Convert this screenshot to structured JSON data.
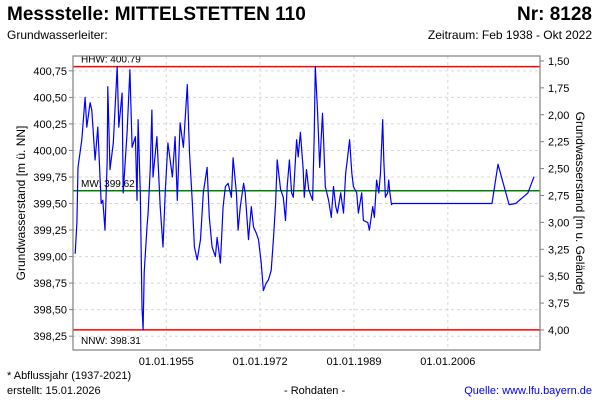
{
  "header": {
    "title": "Messstelle: MITTELSTETTEN 110",
    "number": "Nr: 8128",
    "aquifer": "Grundwasserleiter:",
    "period": "Zeitraum: Feb 1938 - Okt 2022"
  },
  "footer": {
    "footnote": "* Abflussjahr (1937-2021)",
    "created": "erstellt:  15.01.2026",
    "rawdata": "- Rohdaten -",
    "source": "Quelle: www.lfu.bayern.de"
  },
  "chart_data": {
    "type": "line",
    "title": "Messstelle: MITTELSTETTEN 110",
    "ylabel": "Grundwasserstand [m ü. NN]",
    "ylabel_right": "Grundwasserstand [m u. Gelände]",
    "xlim": [
      1938.1,
      2022.7
    ],
    "ylim": [
      398.12,
      400.89
    ],
    "ylim_right": [
      1.454,
      4.186
    ],
    "grid": true,
    "x_ticks": [
      {
        "value": 1955,
        "label": "01.01.1955"
      },
      {
        "value": 1972,
        "label": "01.01.1972"
      },
      {
        "value": 1989,
        "label": "01.01.1989"
      },
      {
        "value": 2006,
        "label": "01.01.2006"
      }
    ],
    "y_ticks": [
      {
        "value": 398.25,
        "label": "398,25"
      },
      {
        "value": 398.5,
        "label": "398,50"
      },
      {
        "value": 398.75,
        "label": "398,75"
      },
      {
        "value": 399.0,
        "label": "399,00"
      },
      {
        "value": 399.25,
        "label": "399,25"
      },
      {
        "value": 399.5,
        "label": "399,50"
      },
      {
        "value": 399.75,
        "label": "399,75"
      },
      {
        "value": 400.0,
        "label": "400,00"
      },
      {
        "value": 400.25,
        "label": "400,25"
      },
      {
        "value": 400.5,
        "label": "400,50"
      },
      {
        "value": 400.75,
        "label": "400,75"
      }
    ],
    "y_ticks_right": [
      {
        "value": 1.5,
        "label": "1,50"
      },
      {
        "value": 1.75,
        "label": "1,75"
      },
      {
        "value": 2.0,
        "label": "2,00"
      },
      {
        "value": 2.25,
        "label": "2,25"
      },
      {
        "value": 2.5,
        "label": "2,50"
      },
      {
        "value": 2.75,
        "label": "2,75"
      },
      {
        "value": 3.0,
        "label": "3,00"
      },
      {
        "value": 3.25,
        "label": "3,25"
      },
      {
        "value": 3.5,
        "label": "3,50"
      },
      {
        "value": 3.75,
        "label": "3,75"
      },
      {
        "value": 4.0,
        "label": "4,00"
      }
    ],
    "reference_lines": [
      {
        "name": "HHW",
        "value": 400.79,
        "label": "HHW: 400.79",
        "color": "#ff0000"
      },
      {
        "name": "MW",
        "value": 399.62,
        "label": "MW: 399.62",
        "color": "#008000"
      },
      {
        "name": "NNW",
        "value": 398.31,
        "label": "NNW: 398.31",
        "color": "#ff0000"
      }
    ],
    "series": [
      {
        "name": "Grundwasserstand",
        "color": "#0000ff",
        "points": [
          [
            1938.5,
            399.03
          ],
          [
            1938.8,
            399.32
          ],
          [
            1939.0,
            399.84
          ],
          [
            1939.7,
            400.1
          ],
          [
            1940.3,
            400.5
          ],
          [
            1940.6,
            400.22
          ],
          [
            1941.2,
            400.45
          ],
          [
            1941.5,
            400.38
          ],
          [
            1942.1,
            399.91
          ],
          [
            1942.6,
            400.22
          ],
          [
            1943.2,
            399.5
          ],
          [
            1943.5,
            399.53
          ],
          [
            1943.9,
            399.25
          ],
          [
            1944.3,
            399.91
          ],
          [
            1944.4,
            400.6
          ],
          [
            1944.8,
            399.82
          ],
          [
            1945.4,
            400.07
          ],
          [
            1946.1,
            400.79
          ],
          [
            1946.4,
            400.22
          ],
          [
            1947.0,
            400.54
          ],
          [
            1947.2,
            399.6
          ],
          [
            1947.9,
            400.17
          ],
          [
            1948.4,
            400.76
          ],
          [
            1948.8,
            400.03
          ],
          [
            1949.4,
            400.13
          ],
          [
            1949.7,
            399.53
          ],
          [
            1949.9,
            400.29
          ],
          [
            1950.3,
            399.6
          ],
          [
            1950.6,
            398.52
          ],
          [
            1950.8,
            398.31
          ],
          [
            1951.0,
            398.85
          ],
          [
            1951.5,
            399.28
          ],
          [
            1951.7,
            399.41
          ],
          [
            1952.1,
            399.84
          ],
          [
            1952.4,
            400.38
          ],
          [
            1952.6,
            399.75
          ],
          [
            1953.3,
            400.13
          ],
          [
            1953.9,
            399.47
          ],
          [
            1954.4,
            399.09
          ],
          [
            1954.8,
            399.6
          ],
          [
            1955.3,
            400.07
          ],
          [
            1956.1,
            399.75
          ],
          [
            1956.6,
            400.13
          ],
          [
            1957.0,
            399.53
          ],
          [
            1957.5,
            400.26
          ],
          [
            1958.1,
            400.03
          ],
          [
            1958.8,
            400.62
          ],
          [
            1959.2,
            399.98
          ],
          [
            1959.7,
            399.53
          ],
          [
            1960.1,
            399.09
          ],
          [
            1960.6,
            398.97
          ],
          [
            1961.2,
            399.16
          ],
          [
            1961.7,
            399.6
          ],
          [
            1962.4,
            399.84
          ],
          [
            1962.8,
            399.37
          ],
          [
            1963.3,
            399.09
          ],
          [
            1963.9,
            399.0
          ],
          [
            1964.2,
            399.18
          ],
          [
            1964.8,
            398.94
          ],
          [
            1965.3,
            399.47
          ],
          [
            1965.7,
            399.66
          ],
          [
            1966.2,
            399.69
          ],
          [
            1966.8,
            399.56
          ],
          [
            1967.1,
            399.93
          ],
          [
            1967.7,
            399.6
          ],
          [
            1968.0,
            399.25
          ],
          [
            1968.4,
            399.47
          ],
          [
            1969.0,
            399.69
          ],
          [
            1969.3,
            399.6
          ],
          [
            1969.9,
            399.16
          ],
          [
            1970.4,
            399.47
          ],
          [
            1970.8,
            399.28
          ],
          [
            1971.3,
            399.22
          ],
          [
            1971.7,
            399.16
          ],
          [
            1972.2,
            398.94
          ],
          [
            1972.6,
            398.68
          ],
          [
            1973.1,
            398.75
          ],
          [
            1973.5,
            398.78
          ],
          [
            1974.0,
            398.87
          ],
          [
            1974.4,
            399.16
          ],
          [
            1974.8,
            399.5
          ],
          [
            1975.1,
            399.91
          ],
          [
            1975.7,
            399.63
          ],
          [
            1976.2,
            399.56
          ],
          [
            1976.6,
            399.34
          ],
          [
            1976.9,
            399.66
          ],
          [
            1977.3,
            399.91
          ],
          [
            1977.7,
            399.6
          ],
          [
            1978.0,
            399.56
          ],
          [
            1978.6,
            400.1
          ],
          [
            1978.9,
            399.94
          ],
          [
            1979.3,
            400.17
          ],
          [
            1979.8,
            399.82
          ],
          [
            1980.0,
            399.56
          ],
          [
            1980.4,
            399.82
          ],
          [
            1980.8,
            399.63
          ],
          [
            1981.5,
            399.53
          ],
          [
            1981.8,
            400.13
          ],
          [
            1982.0,
            400.79
          ],
          [
            1982.4,
            400.38
          ],
          [
            1982.8,
            399.84
          ],
          [
            1983.3,
            400.35
          ],
          [
            1983.5,
            400.1
          ],
          [
            1983.8,
            399.66
          ],
          [
            1984.4,
            399.53
          ],
          [
            1984.9,
            399.37
          ],
          [
            1985.3,
            399.66
          ],
          [
            1985.7,
            399.47
          ],
          [
            1986.0,
            399.41
          ],
          [
            1986.6,
            399.6
          ],
          [
            1987.1,
            399.41
          ],
          [
            1987.5,
            399.79
          ],
          [
            1987.8,
            399.91
          ],
          [
            1988.2,
            400.1
          ],
          [
            1988.6,
            399.79
          ],
          [
            1988.9,
            399.66
          ],
          [
            1989.5,
            399.6
          ],
          [
            1989.8,
            399.41
          ],
          [
            1990.4,
            399.6
          ],
          [
            1990.7,
            399.34
          ],
          [
            1991.5,
            399.32
          ],
          [
            1991.8,
            399.25
          ],
          [
            1992.4,
            399.47
          ],
          [
            1992.7,
            399.37
          ],
          [
            1993.1,
            399.72
          ],
          [
            1993.5,
            399.6
          ],
          [
            1993.8,
            399.79
          ],
          [
            1994.2,
            400.29
          ],
          [
            1994.4,
            399.91
          ],
          [
            1994.7,
            399.56
          ],
          [
            1995.1,
            399.6
          ],
          [
            1995.3,
            399.72
          ],
          [
            1995.5,
            399.6
          ],
          [
            1995.8,
            399.49
          ],
          [
            1996.0,
            399.5
          ],
          [
            2014.0,
            399.5
          ],
          [
            2015.1,
            399.87
          ],
          [
            2017.1,
            399.49
          ],
          [
            2018.3,
            399.5
          ],
          [
            2020.5,
            399.6
          ],
          [
            2021.6,
            399.75
          ]
        ]
      }
    ]
  }
}
